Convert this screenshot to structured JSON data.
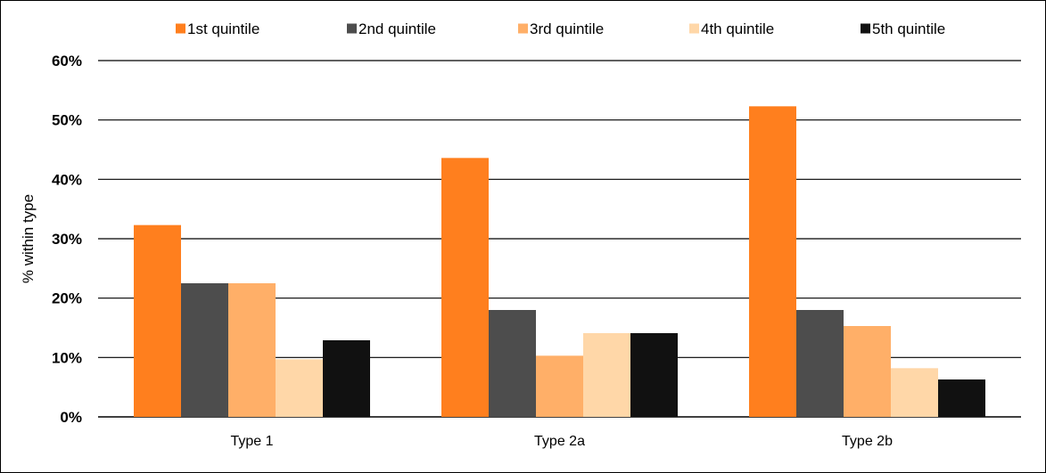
{
  "chart_data": {
    "type": "bar",
    "title": "",
    "xlabel": "",
    "ylabel": "% within type",
    "categories": [
      "Type 1",
      "Type 2a",
      "Type 2b"
    ],
    "series": [
      {
        "name": "1st quintile",
        "color": "#FF7F1E",
        "values": [
          32.3,
          43.6,
          52.3
        ]
      },
      {
        "name": "2nd quintile",
        "color": "#4D4D4D",
        "values": [
          22.5,
          18.0,
          18.0
        ]
      },
      {
        "name": "3rd quintile",
        "color": "#FFAF68",
        "values": [
          22.5,
          10.3,
          15.3
        ]
      },
      {
        "name": "4th quintile",
        "color": "#FFD7A8",
        "values": [
          9.7,
          14.1,
          8.2
        ]
      },
      {
        "name": "5th quintile",
        "color": "#111111",
        "values": [
          12.9,
          14.1,
          6.3
        ]
      }
    ],
    "ylim": [
      0,
      60
    ],
    "yticks": [
      0,
      10,
      20,
      30,
      40,
      50,
      60
    ],
    "ytick_labels": [
      "0%",
      "10%",
      "20%",
      "30%",
      "40%",
      "50%",
      "60%"
    ],
    "grid": true,
    "legend_position": "top"
  }
}
